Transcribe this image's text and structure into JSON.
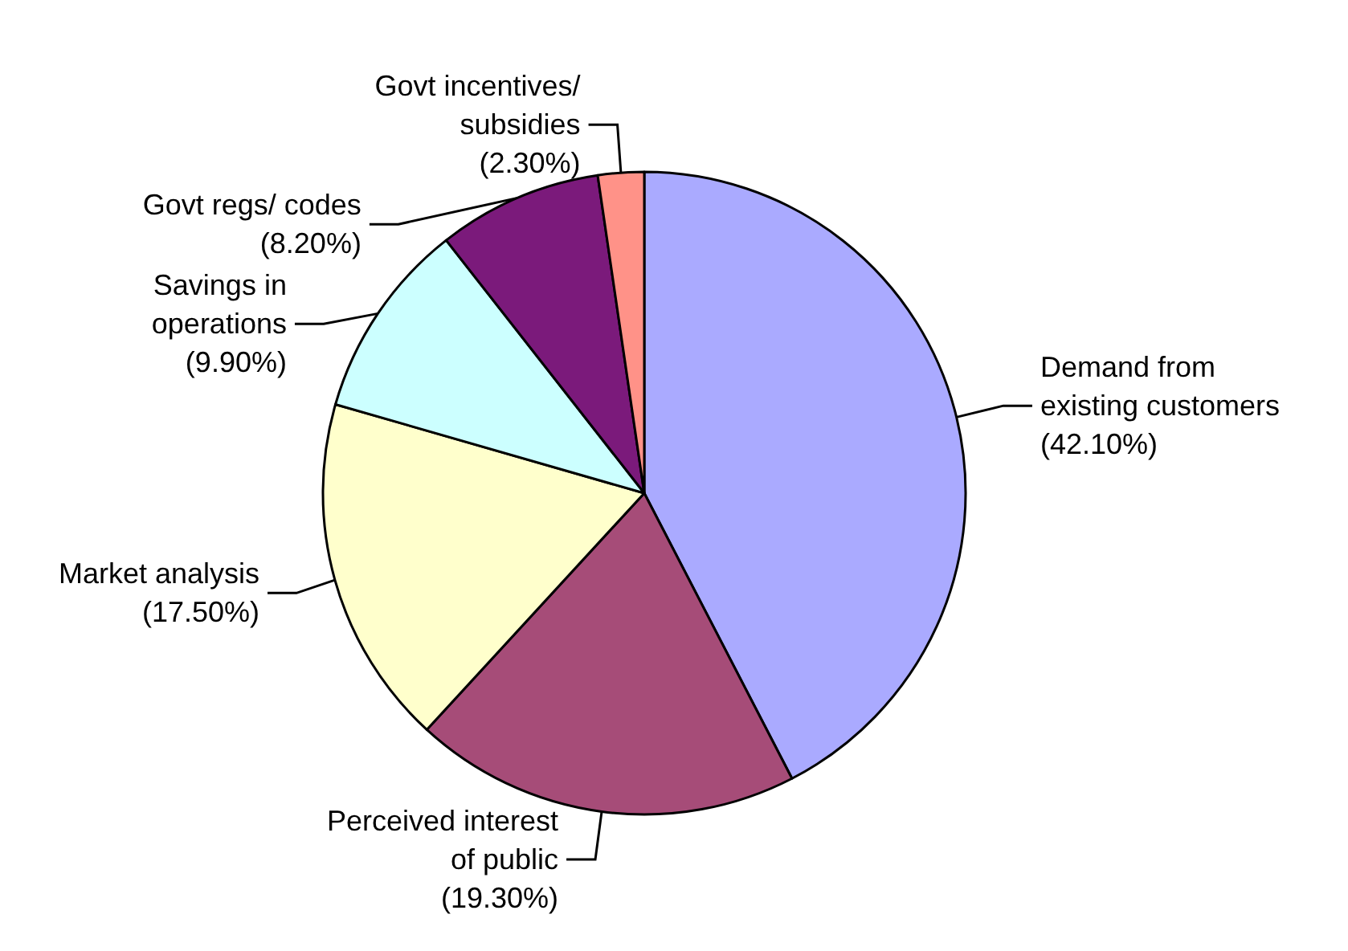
{
  "chart_data": {
    "type": "pie",
    "categories": [
      "Demand from\nexisting customers",
      "Perceived interest\nof public",
      "Market analysis",
      "Savings in\noperations",
      "Govt regs/ codes",
      "Govt incentives/\nsubsidies"
    ],
    "values": [
      42.1,
      19.3,
      17.5,
      9.9,
      8.2,
      2.3
    ],
    "value_labels": [
      "(42.10%)",
      "(19.30%)",
      "(17.50%)",
      "(9.90%)",
      "(8.20%)",
      "(2.30%)"
    ],
    "colors": [
      "#aaaaff",
      "#a64c78",
      "#ffffcc",
      "#ccffff",
      "#7b1a7b",
      "#ff9288"
    ],
    "legend": false
  }
}
